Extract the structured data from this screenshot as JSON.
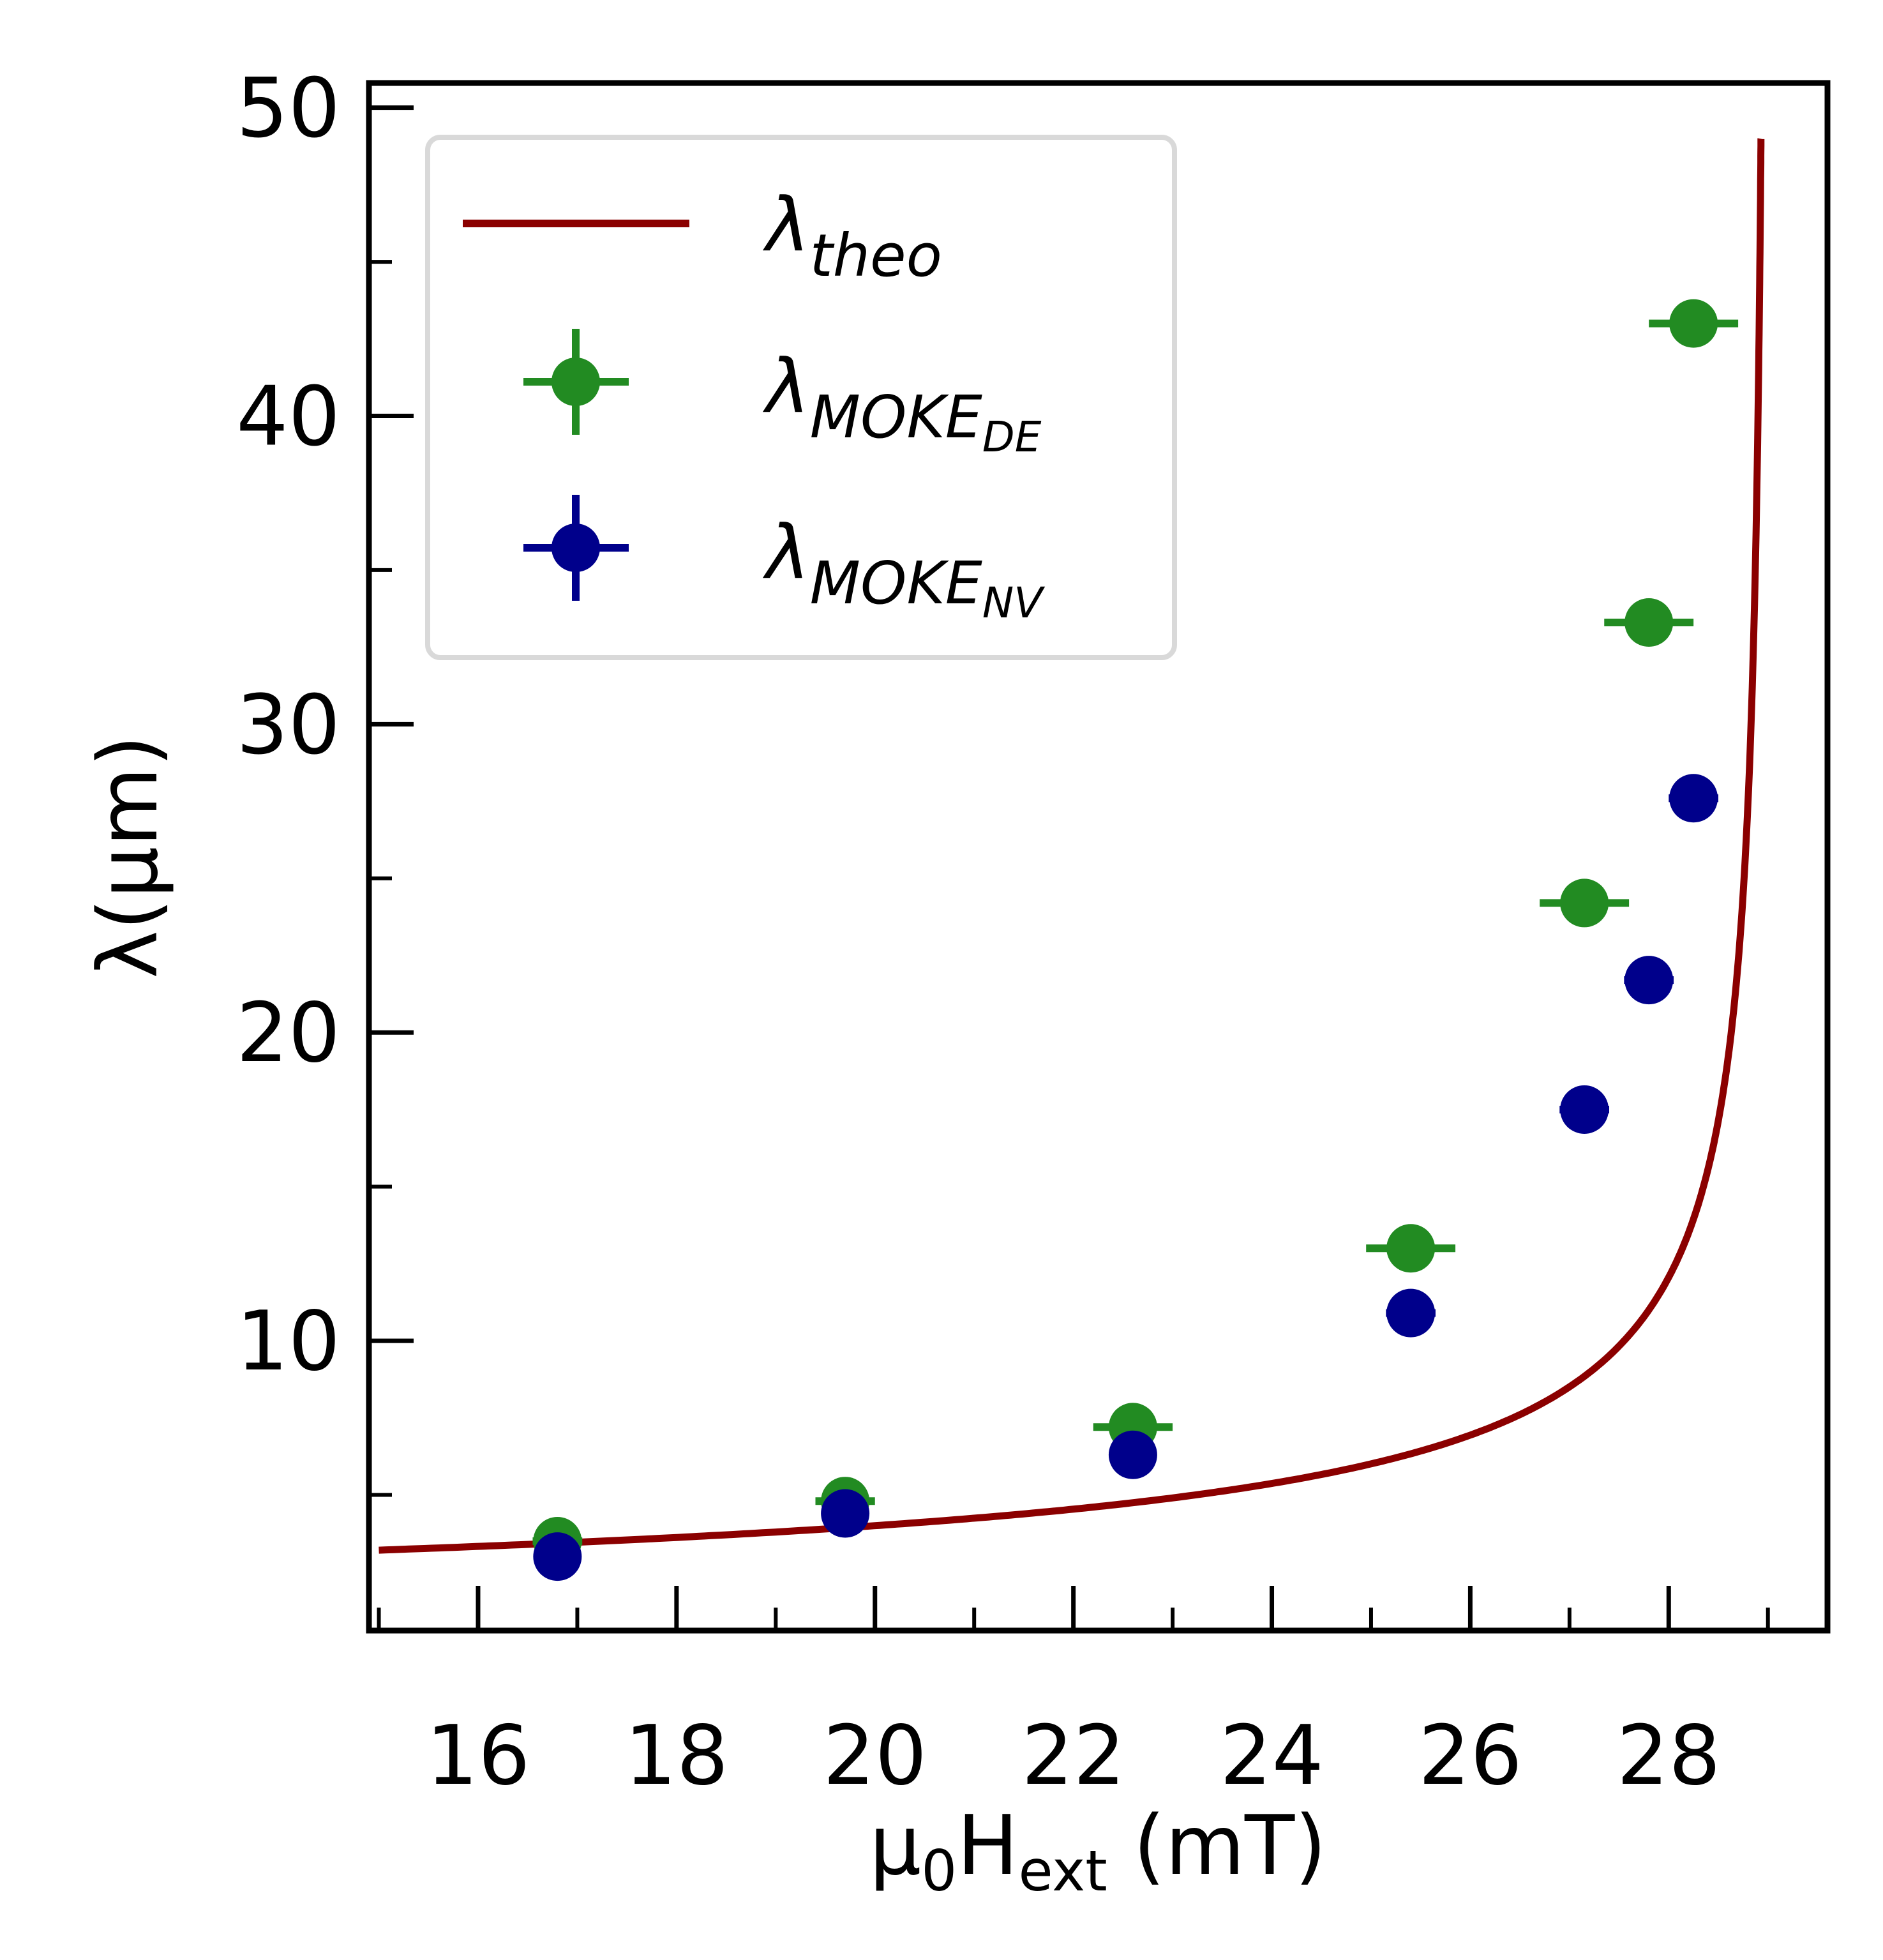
{
  "chart_data": {
    "type": "scatter",
    "xlabel": {
      "base": "μ",
      "sub1": "0",
      "mid": "H",
      "sub2": "ext",
      "tail": " (mT)"
    },
    "ylabel": "λ(μm)",
    "xlim": [
      14.9,
      29.6
    ],
    "ylim": [
      0.6,
      50.8
    ],
    "x_ticks": [
      16,
      18,
      20,
      22,
      24,
      26,
      28
    ],
    "x_tick_labels": [
      "16",
      "18",
      "20",
      "22",
      "24",
      "26",
      "28"
    ],
    "x_minor_ticks": [
      15,
      17,
      19,
      21,
      23,
      25,
      27,
      29
    ],
    "y_ticks": [
      10,
      20,
      30,
      40,
      50
    ],
    "y_tick_labels": [
      "10",
      "20",
      "30",
      "40",
      "50"
    ],
    "y_minor_ticks": [
      5,
      15,
      25,
      35,
      45
    ],
    "grid": false,
    "legend_position": "top-left",
    "series": [
      {
        "name": "λtheo",
        "legend": {
          "main": "λ",
          "sub": "theo",
          "subsub": ""
        },
        "kind": "line",
        "color": "#8b0000",
        "x_range": [
          15.0,
          28.93
        ],
        "model": "A / sqrt(Hc - x)",
        "params": {
          "A": 12.0,
          "Hc": 28.99
        }
      },
      {
        "name": "λMOKE_DE",
        "legend": {
          "main": "λ",
          "sub": "MOKE",
          "subsub": "DE"
        },
        "kind": "errorbar",
        "color": "#228b22",
        "x": [
          16.8,
          19.7,
          22.6,
          25.4,
          27.15,
          27.8,
          28.25
        ],
        "y": [
          3.5,
          4.8,
          7.2,
          13.0,
          24.2,
          33.3,
          43.0
        ],
        "xerr": [
          0.25,
          0.3,
          0.4,
          0.45,
          0.45,
          0.45,
          0.45
        ],
        "yerr": [
          0,
          0,
          0,
          0,
          0,
          0,
          0
        ]
      },
      {
        "name": "λMOKE_NV",
        "legend": {
          "main": "λ",
          "sub": "MOKE",
          "subsub": "NV"
        },
        "kind": "errorbar",
        "color": "#00008b",
        "x": [
          16.8,
          19.7,
          22.6,
          25.4,
          27.15,
          27.8,
          28.25
        ],
        "y": [
          3.0,
          4.4,
          6.3,
          10.9,
          17.5,
          21.7,
          27.6
        ],
        "xerr": [
          0.2,
          0.2,
          0.2,
          0.25,
          0.25,
          0.25,
          0.25
        ],
        "yerr": [
          0,
          0,
          0,
          0,
          0,
          0,
          0
        ]
      }
    ]
  }
}
